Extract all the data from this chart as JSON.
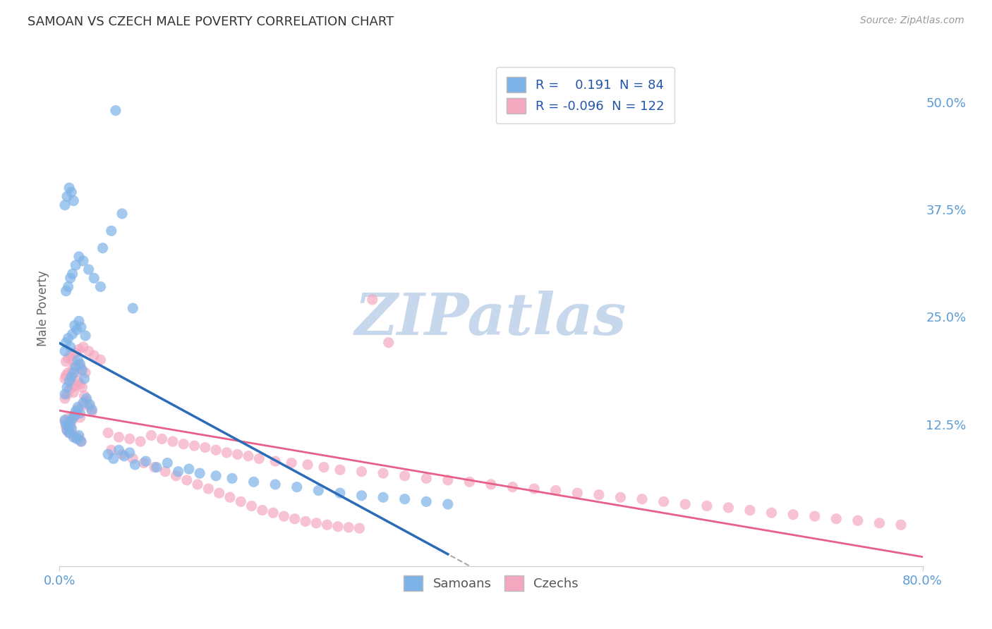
{
  "title": "SAMOAN VS CZECH MALE POVERTY CORRELATION CHART",
  "source": "Source: ZipAtlas.com",
  "ylabel": "Male Poverty",
  "ytick_vals": [
    0.5,
    0.375,
    0.25,
    0.125
  ],
  "ytick_labels": [
    "50.0%",
    "37.5%",
    "25.0%",
    "12.5%"
  ],
  "xlim": [
    0.0,
    0.8
  ],
  "ylim": [
    -0.04,
    0.56
  ],
  "samoan_R": 0.191,
  "samoan_N": 84,
  "czech_R": -0.096,
  "czech_N": 122,
  "samoan_color": "#7EB3E8",
  "czech_color": "#F4A8C0",
  "samoan_line_color": "#2B6CB8",
  "czech_line_color": "#E8608A",
  "trend_dash_color": "#AAAAAA",
  "background_color": "#FFFFFF",
  "watermark_color": "#C8D8EC",
  "title_color": "#333333",
  "tick_color": "#5B9BD5",
  "grid_color": "#CCCCCC",
  "samoan_x": [
    0.005,
    0.006,
    0.007,
    0.008,
    0.009,
    0.01,
    0.011,
    0.012,
    0.013,
    0.014,
    0.015,
    0.016,
    0.017,
    0.018,
    0.019,
    0.02,
    0.022,
    0.025,
    0.028,
    0.03,
    0.005,
    0.007,
    0.009,
    0.011,
    0.013,
    0.015,
    0.017,
    0.019,
    0.021,
    0.023,
    0.005,
    0.006,
    0.008,
    0.01,
    0.012,
    0.014,
    0.016,
    0.018,
    0.02,
    0.024,
    0.006,
    0.008,
    0.01,
    0.012,
    0.015,
    0.018,
    0.022,
    0.027,
    0.032,
    0.038,
    0.005,
    0.007,
    0.009,
    0.011,
    0.013,
    0.045,
    0.05,
    0.055,
    0.06,
    0.065,
    0.07,
    0.08,
    0.09,
    0.1,
    0.11,
    0.12,
    0.13,
    0.145,
    0.16,
    0.18,
    0.2,
    0.22,
    0.24,
    0.26,
    0.28,
    0.3,
    0.32,
    0.34,
    0.36,
    0.04,
    0.048,
    0.052,
    0.058,
    0.068
  ],
  "samoan_y": [
    0.13,
    0.125,
    0.118,
    0.122,
    0.115,
    0.128,
    0.12,
    0.132,
    0.11,
    0.135,
    0.14,
    0.108,
    0.145,
    0.112,
    0.138,
    0.105,
    0.15,
    0.155,
    0.148,
    0.142,
    0.16,
    0.168,
    0.175,
    0.18,
    0.185,
    0.192,
    0.2,
    0.195,
    0.188,
    0.178,
    0.21,
    0.22,
    0.225,
    0.215,
    0.23,
    0.24,
    0.235,
    0.245,
    0.238,
    0.228,
    0.28,
    0.285,
    0.295,
    0.3,
    0.31,
    0.32,
    0.315,
    0.305,
    0.295,
    0.285,
    0.38,
    0.39,
    0.4,
    0.395,
    0.385,
    0.09,
    0.085,
    0.095,
    0.088,
    0.092,
    0.078,
    0.082,
    0.075,
    0.08,
    0.07,
    0.073,
    0.068,
    0.065,
    0.062,
    0.058,
    0.055,
    0.052,
    0.048,
    0.045,
    0.042,
    0.04,
    0.038,
    0.035,
    0.032,
    0.33,
    0.35,
    0.49,
    0.37,
    0.26
  ],
  "czech_x": [
    0.005,
    0.006,
    0.007,
    0.008,
    0.009,
    0.01,
    0.011,
    0.012,
    0.013,
    0.014,
    0.015,
    0.016,
    0.017,
    0.018,
    0.019,
    0.02,
    0.022,
    0.025,
    0.028,
    0.03,
    0.005,
    0.007,
    0.009,
    0.011,
    0.013,
    0.015,
    0.017,
    0.019,
    0.021,
    0.023,
    0.005,
    0.006,
    0.008,
    0.01,
    0.012,
    0.014,
    0.016,
    0.018,
    0.02,
    0.024,
    0.006,
    0.008,
    0.01,
    0.012,
    0.015,
    0.018,
    0.022,
    0.027,
    0.032,
    0.038,
    0.045,
    0.055,
    0.065,
    0.075,
    0.085,
    0.095,
    0.105,
    0.115,
    0.125,
    0.135,
    0.145,
    0.155,
    0.165,
    0.175,
    0.185,
    0.2,
    0.215,
    0.23,
    0.245,
    0.26,
    0.28,
    0.3,
    0.32,
    0.34,
    0.36,
    0.38,
    0.4,
    0.42,
    0.44,
    0.46,
    0.48,
    0.5,
    0.52,
    0.54,
    0.56,
    0.58,
    0.6,
    0.62,
    0.64,
    0.66,
    0.68,
    0.7,
    0.72,
    0.74,
    0.76,
    0.78,
    0.048,
    0.058,
    0.068,
    0.078,
    0.088,
    0.098,
    0.108,
    0.118,
    0.128,
    0.138,
    0.148,
    0.158,
    0.168,
    0.178,
    0.188,
    0.198,
    0.208,
    0.218,
    0.228,
    0.238,
    0.248,
    0.258,
    0.268,
    0.278,
    0.29,
    0.305
  ],
  "czech_y": [
    0.128,
    0.122,
    0.118,
    0.132,
    0.115,
    0.125,
    0.12,
    0.13,
    0.112,
    0.135,
    0.138,
    0.11,
    0.142,
    0.108,
    0.133,
    0.105,
    0.148,
    0.152,
    0.145,
    0.14,
    0.155,
    0.16,
    0.165,
    0.168,
    0.162,
    0.17,
    0.175,
    0.172,
    0.168,
    0.158,
    0.178,
    0.182,
    0.185,
    0.18,
    0.188,
    0.192,
    0.186,
    0.195,
    0.19,
    0.185,
    0.198,
    0.202,
    0.205,
    0.2,
    0.208,
    0.212,
    0.215,
    0.21,
    0.205,
    0.2,
    0.115,
    0.11,
    0.108,
    0.105,
    0.112,
    0.108,
    0.105,
    0.102,
    0.1,
    0.098,
    0.095,
    0.092,
    0.09,
    0.088,
    0.085,
    0.082,
    0.08,
    0.078,
    0.075,
    0.072,
    0.07,
    0.068,
    0.065,
    0.062,
    0.06,
    0.058,
    0.055,
    0.052,
    0.05,
    0.048,
    0.045,
    0.043,
    0.04,
    0.038,
    0.035,
    0.032,
    0.03,
    0.028,
    0.025,
    0.022,
    0.02,
    0.018,
    0.015,
    0.013,
    0.01,
    0.008,
    0.095,
    0.09,
    0.085,
    0.08,
    0.075,
    0.07,
    0.065,
    0.06,
    0.055,
    0.05,
    0.045,
    0.04,
    0.035,
    0.03,
    0.025,
    0.022,
    0.018,
    0.015,
    0.012,
    0.01,
    0.008,
    0.006,
    0.005,
    0.004,
    0.27,
    0.22
  ]
}
